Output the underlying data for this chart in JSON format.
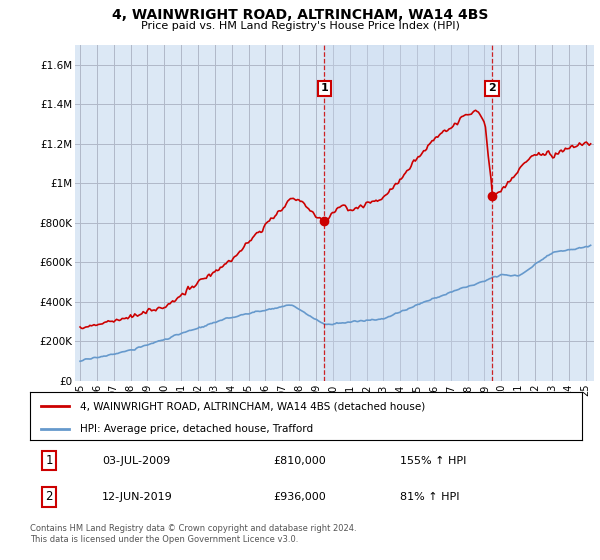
{
  "title": "4, WAINWRIGHT ROAD, ALTRINCHAM, WA14 4BS",
  "subtitle": "Price paid vs. HM Land Registry's House Price Index (HPI)",
  "ylabel_ticks": [
    "£0",
    "£200K",
    "£400K",
    "£600K",
    "£800K",
    "£1M",
    "£1.2M",
    "£1.4M",
    "£1.6M"
  ],
  "ytick_values": [
    0,
    200000,
    400000,
    600000,
    800000,
    1000000,
    1200000,
    1400000,
    1600000
  ],
  "ylim": [
    0,
    1700000
  ],
  "xlim_start": 1994.7,
  "xlim_end": 2025.5,
  "sale1_x": 2009.5,
  "sale1_y": 810000,
  "sale1_label": "1",
  "sale1_date": "03-JUL-2009",
  "sale1_price": "£810,000",
  "sale1_hpi": "155% ↑ HPI",
  "sale2_x": 2019.45,
  "sale2_y": 936000,
  "sale2_label": "2",
  "sale2_date": "12-JUN-2019",
  "sale2_price": "£936,000",
  "sale2_hpi": "81% ↑ HPI",
  "legend_line1": "4, WAINWRIGHT ROAD, ALTRINCHAM, WA14 4BS (detached house)",
  "legend_line2": "HPI: Average price, detached house, Trafford",
  "footer": "Contains HM Land Registry data © Crown copyright and database right 2024.\nThis data is licensed under the Open Government Licence v3.0.",
  "red_color": "#cc0000",
  "blue_color": "#6699cc",
  "bg_color": "#dce8f5",
  "bg_shade_color": "#c8daf0",
  "grid_color": "#b0b8c8"
}
